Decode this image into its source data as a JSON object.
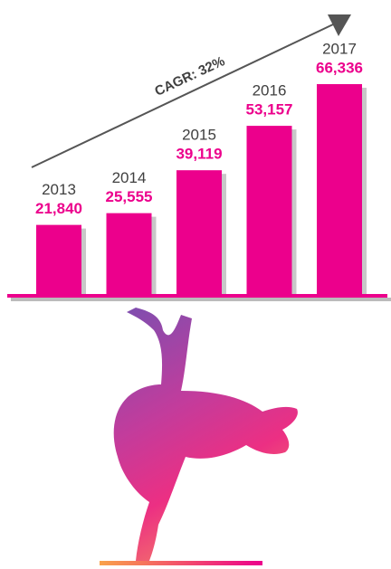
{
  "chart_data": {
    "type": "bar",
    "annotation": "CAGR: 32%",
    "categories": [
      "2013",
      "2014",
      "2015",
      "2016",
      "2017"
    ],
    "values": [
      21840,
      25555,
      39119,
      53157,
      66336
    ],
    "value_labels": [
      "21,840",
      "25,555",
      "39,119",
      "53,157",
      "66,336"
    ],
    "color": "#ec008c"
  }
}
